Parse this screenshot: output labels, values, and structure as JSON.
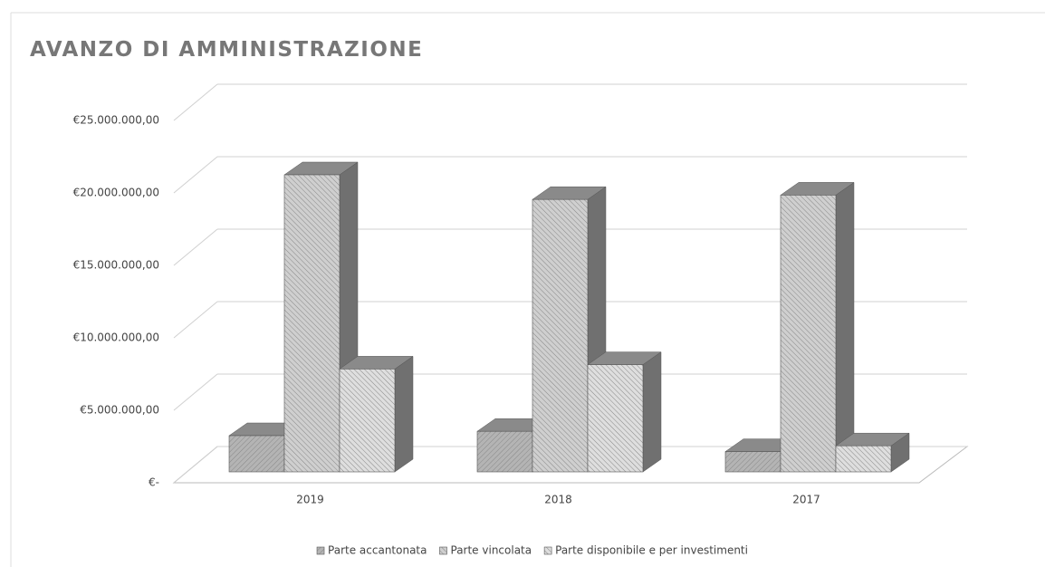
{
  "chart_data": {
    "type": "bar3d",
    "title": "AVANZO DI AMMINISTRAZIONE",
    "categories": [
      "2019",
      "2018",
      "2017"
    ],
    "series": [
      {
        "name": "Parte accantonata",
        "color": "#b4b4b4",
        "values": [
          2500000,
          2800000,
          1400000
        ]
      },
      {
        "name": "Parte vincolata",
        "color": "#cfcfcf",
        "values": [
          20500000,
          18800000,
          19100000
        ]
      },
      {
        "name": "Parte disponibile e per investimenti",
        "color": "#dedede",
        "values": [
          7100000,
          7400000,
          1800000
        ]
      }
    ],
    "ylim": [
      0,
      25000000
    ],
    "yticks": [
      {
        "value": 0,
        "label": "€-"
      },
      {
        "value": 5000000,
        "label": "€5.000.000,00"
      },
      {
        "value": 10000000,
        "label": "€10.000.000,00"
      },
      {
        "value": 15000000,
        "label": "€15.000.000,00"
      },
      {
        "value": 20000000,
        "label": "€20.000.000,00"
      },
      {
        "value": 25000000,
        "label": "€25.000.000,00"
      }
    ],
    "grid": true,
    "legend": "bottom"
  }
}
